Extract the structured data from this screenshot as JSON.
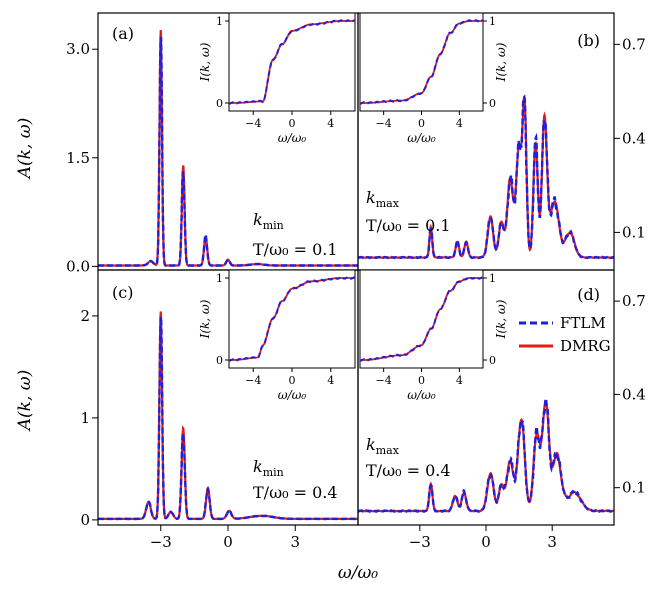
{
  "colors": {
    "ftlm": "#1f1fdc",
    "dmrg": "#e01b1b",
    "frame": "#000000"
  },
  "shared": {
    "xlabel": "ω/ω₀",
    "ylabel_left": "A(k, ω)",
    "inset_xlabel": "ω/ω₀",
    "inset_ylabel": "I(k, ω)"
  },
  "legend": {
    "placement": "right of panel (d)",
    "items": [
      "FTLM",
      "DMRG"
    ]
  },
  "chart_data": [
    {
      "panel": "(a)",
      "type": "line",
      "k_label": "k",
      "k_sub": "min",
      "T_label": "T/ω₀ = 0.1",
      "xlim": [
        -5.8,
        5.8
      ],
      "ylim": [
        -0.05,
        3.5
      ],
      "yticks": [
        0.0,
        1.5,
        3.0
      ],
      "ytick_labels": [
        "0.0",
        "1.5",
        "3.0"
      ],
      "ytick_side": "left",
      "xticks": [],
      "xtick_labels": [],
      "peaks": [
        [
          -3.0,
          3.2,
          0.055
        ],
        [
          -2.0,
          1.37,
          0.06
        ],
        [
          -1.0,
          0.4,
          0.07
        ],
        [
          0.0,
          0.08,
          0.08
        ],
        [
          -3.45,
          0.06,
          0.12
        ],
        [
          1.3,
          0.02,
          0.3
        ]
      ],
      "baseline": 0.012,
      "inset": {
        "placement": "top-right",
        "edge_x": [
          -6,
          -3,
          -2,
          -1,
          0,
          2,
          5
        ],
        "edge_y": [
          0.0,
          0.02,
          0.52,
          0.72,
          0.88,
          0.96,
          1.0
        ],
        "xticks": [
          -4,
          0,
          4
        ],
        "xtick_labels": [
          "−4",
          "0",
          "4"
        ],
        "yticks": [
          0,
          1
        ],
        "ytick_labels": [
          "0",
          "1"
        ],
        "ytick_side": "left"
      },
      "series": [
        {
          "name": "FTLM",
          "style": "dashed"
        },
        {
          "name": "DMRG",
          "style": "solid"
        }
      ]
    },
    {
      "panel": "(b)",
      "type": "line",
      "k_label": "k",
      "k_sub": "max",
      "T_label": "T/ω₀ = 0.1",
      "xlim": [
        -5.8,
        5.8
      ],
      "ylim": [
        -0.02,
        0.8
      ],
      "yticks": [
        0.1,
        0.4,
        0.7
      ],
      "ytick_labels": [
        "0.1",
        "0.4",
        "0.7"
      ],
      "ytick_side": "right",
      "xticks": [],
      "xtick_labels": [],
      "peaks": [
        [
          -2.5,
          0.1,
          0.06
        ],
        [
          -1.3,
          0.05,
          0.08
        ],
        [
          -0.9,
          0.05,
          0.08
        ],
        [
          0.2,
          0.13,
          0.12
        ],
        [
          0.7,
          0.11,
          0.12
        ],
        [
          1.1,
          0.25,
          0.13
        ],
        [
          1.5,
          0.35,
          0.13
        ],
        [
          1.75,
          0.44,
          0.09
        ],
        [
          2.25,
          0.37,
          0.1
        ],
        [
          2.65,
          0.45,
          0.11
        ],
        [
          3.1,
          0.18,
          0.2
        ],
        [
          3.8,
          0.08,
          0.2
        ]
      ],
      "baseline": 0.02,
      "inset": {
        "placement": "top-left",
        "edge_x": [
          -6,
          -2,
          0,
          1,
          2,
          3,
          4,
          5
        ],
        "edge_y": [
          0.0,
          0.03,
          0.12,
          0.32,
          0.6,
          0.85,
          0.97,
          1.0
        ],
        "xticks": [
          -4,
          0,
          4
        ],
        "xtick_labels": [
          "−4",
          "0",
          "4"
        ],
        "yticks": [
          0,
          1
        ],
        "ytick_labels": [
          "0",
          "1"
        ],
        "ytick_side": "right"
      },
      "series": [
        {
          "name": "FTLM",
          "style": "dashed"
        },
        {
          "name": "DMRG",
          "style": "solid"
        }
      ]
    },
    {
      "panel": "(c)",
      "type": "line",
      "k_label": "k",
      "k_sub": "min",
      "T_label": "T/ω₀ = 0.4",
      "xlim": [
        -5.8,
        5.8
      ],
      "ylim": [
        -0.05,
        2.45
      ],
      "yticks": [
        0,
        1,
        2
      ],
      "ytick_labels": [
        "0",
        "1",
        "2"
      ],
      "ytick_side": "left",
      "xticks": [
        -3,
        0,
        3
      ],
      "xtick_labels": [
        "−3",
        "0",
        "3"
      ],
      "peaks": [
        [
          -3.0,
          2.0,
          0.06
        ],
        [
          -2.0,
          0.88,
          0.07
        ],
        [
          -0.9,
          0.3,
          0.08
        ],
        [
          0.05,
          0.08,
          0.1
        ],
        [
          -3.55,
          0.17,
          0.1
        ],
        [
          -2.55,
          0.07,
          0.1
        ],
        [
          1.5,
          0.03,
          0.5
        ]
      ],
      "baseline": 0.01,
      "inset": {
        "placement": "top-right",
        "edge_x": [
          -6,
          -3.5,
          -3,
          -2,
          -1,
          0,
          2,
          5
        ],
        "edge_y": [
          0.0,
          0.03,
          0.18,
          0.5,
          0.72,
          0.87,
          0.96,
          1.0
        ],
        "xticks": [
          -4,
          0,
          4
        ],
        "xtick_labels": [
          "−4",
          "0",
          "4"
        ],
        "yticks": [
          0,
          1
        ],
        "ytick_labels": [
          "0",
          "1"
        ],
        "ytick_side": "left"
      },
      "series": [
        {
          "name": "FTLM",
          "style": "dashed"
        },
        {
          "name": "DMRG",
          "style": "solid"
        }
      ]
    },
    {
      "panel": "(d)",
      "type": "line",
      "k_label": "k",
      "k_sub": "max",
      "T_label": "T/ω₀ = 0.4",
      "xlim": [
        -5.8,
        5.8
      ],
      "ylim": [
        -0.02,
        0.8
      ],
      "yticks": [
        0.1,
        0.4,
        0.7
      ],
      "ytick_labels": [
        "0.1",
        "0.4",
        "0.7"
      ],
      "ytick_side": "right",
      "xticks": [
        -3,
        0,
        3
      ],
      "xtick_labels": [
        "−3",
        "0",
        "3"
      ],
      "peaks": [
        [
          -2.5,
          0.09,
          0.07
        ],
        [
          -1.4,
          0.05,
          0.1
        ],
        [
          -1.0,
          0.06,
          0.1
        ],
        [
          0.2,
          0.12,
          0.14
        ],
        [
          0.7,
          0.08,
          0.12
        ],
        [
          1.1,
          0.16,
          0.15
        ],
        [
          1.6,
          0.3,
          0.15
        ],
        [
          2.3,
          0.25,
          0.14
        ],
        [
          2.7,
          0.35,
          0.14
        ],
        [
          3.2,
          0.18,
          0.2
        ],
        [
          4.0,
          0.06,
          0.3
        ]
      ],
      "baseline": 0.025,
      "inset": {
        "placement": "top-left",
        "edge_x": [
          -6,
          -2,
          0,
          1,
          2,
          3,
          4,
          5
        ],
        "edge_y": [
          0.0,
          0.06,
          0.18,
          0.38,
          0.62,
          0.84,
          0.96,
          1.0
        ],
        "xticks": [
          -4,
          0,
          4
        ],
        "xtick_labels": [
          "−4",
          "0",
          "4"
        ],
        "yticks": [
          0,
          1
        ],
        "ytick_labels": [
          "0",
          "1"
        ],
        "ytick_side": "right"
      },
      "series": [
        {
          "name": "FTLM",
          "style": "dashed"
        },
        {
          "name": "DMRG",
          "style": "solid"
        }
      ]
    }
  ]
}
